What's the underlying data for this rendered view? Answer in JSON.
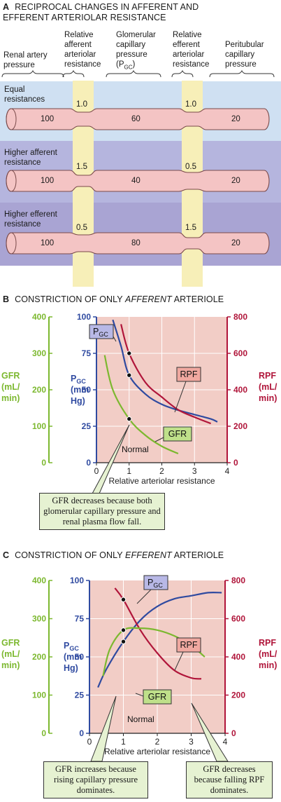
{
  "panel_a": {
    "letter": "A",
    "title_line1": "RECIPROCAL CHANGES IN AFFERENT AND",
    "title_line2": "EFFERENT ARTERIOLAR RESISTANCE",
    "col_heads": {
      "renal_artery": [
        "Renal artery",
        "pressure"
      ],
      "afferent": [
        "Relative",
        "afferent",
        "arteriolar",
        "resistance"
      ],
      "glomerular": [
        "Glomerular",
        "capillary",
        "pressure",
        "(P",
        "GC",
        ")"
      ],
      "efferent": [
        "Relative",
        "efferent",
        "arteriolar",
        "resistance"
      ],
      "peritubular": [
        "Peritubular",
        "capillary",
        "pressure"
      ]
    },
    "rows": [
      {
        "label": [
          "Equal",
          "resistances"
        ],
        "afferent": "1.0",
        "efferent": "1.0",
        "renal": "100",
        "pgc": "60",
        "peri": "20"
      },
      {
        "label": [
          "Higher afferent",
          "resistance"
        ],
        "afferent": "1.5",
        "efferent": "0.5",
        "renal": "100",
        "pgc": "40",
        "peri": "20"
      },
      {
        "label": [
          "Higher efferent",
          "resistance"
        ],
        "afferent": "0.5",
        "efferent": "1.5",
        "renal": "100",
        "pgc": "80",
        "peri": "20"
      }
    ],
    "colors": {
      "row1": "#cfe0f2",
      "row2": "#b5b5de",
      "row3": "#a9a4d3",
      "column": "#f7efb8",
      "vessel": "#f4c4c4",
      "vessel_stroke": "#7a4a4a"
    }
  },
  "panel_b": {
    "letter": "B",
    "title_pre": "CONSTRICTION OF ONLY ",
    "title_em": "AFFERENT",
    "title_post": " ARTERIOLE",
    "callout": "GFR decreases because both glomerular capillary pressure and renal plasma flow fall.",
    "normal_label": "Normal"
  },
  "panel_c": {
    "letter": "C",
    "title_pre": "CONSTRICTION OF ONLY ",
    "title_em": "EFFERENT",
    "title_post": " ARTERIOLE",
    "callout_left": "GFR increases because rising capillary pressure dominates.",
    "callout_right": "GFR decreases because falling RPF dominates.",
    "normal_label": "Normal"
  },
  "axes": {
    "gfr_label": [
      "GFR",
      "(mL/",
      "min)"
    ],
    "pgc_label": [
      "P",
      "GC",
      "(mm",
      "Hg)"
    ],
    "rpf_label": [
      "RPF",
      "(mL/",
      "min)"
    ],
    "x_label": "Relative arteriolar resistance",
    "gfr_ticks": [
      "400",
      "300",
      "200",
      "100",
      "0"
    ],
    "pgc_ticks": [
      "100",
      "75",
      "50",
      "25",
      "0"
    ],
    "rpf_ticks": [
      "800",
      "600",
      "400",
      "200",
      "0"
    ],
    "x_ticks": [
      "0",
      "1",
      "2",
      "3",
      "4"
    ],
    "series_tags": {
      "pgc": [
        "P",
        "GC"
      ],
      "rpf": "RPF",
      "gfr": "GFR"
    },
    "colors": {
      "gfr": "#7cb82f",
      "pgc": "#2f4aa0",
      "rpf": "#b0153a",
      "plot_bg": "#f2cdc6",
      "pgc_tag": "#b8b8e6",
      "rpf_tag": "#f0a8a0",
      "gfr_tag": "#bfe08a"
    }
  },
  "chart_data": [
    {
      "type": "line",
      "title": "CONSTRICTION OF ONLY AFFERENT ARTERIOLE",
      "xlabel": "Relative arteriolar resistance",
      "xlim": [
        0,
        4
      ],
      "y_axes": {
        "GFR (mL/min)": [
          0,
          400
        ],
        "PGC (mm Hg)": [
          0,
          100
        ],
        "RPF (mL/min)": [
          0,
          800
        ]
      },
      "series": [
        {
          "name": "PGC",
          "axis": "PGC (mm Hg)",
          "x": [
            0.5,
            0.75,
            1.0,
            1.5,
            2.0,
            2.5,
            3.0,
            3.5,
            3.7
          ],
          "y": [
            98,
            80,
            60,
            47,
            40,
            36,
            33,
            30,
            28
          ]
        },
        {
          "name": "RPF",
          "axis": "RPF (mL/min)",
          "x": [
            0.75,
            1.0,
            1.5,
            2.0,
            2.5,
            3.0,
            3.5
          ],
          "y": [
            760,
            600,
            440,
            360,
            290,
            250,
            215
          ]
        },
        {
          "name": "GFR",
          "axis": "GFR (mL/min)",
          "x": [
            0.25,
            0.5,
            1.0,
            1.5,
            2.0,
            2.5
          ],
          "y": [
            295,
            200,
            120,
            75,
            45,
            25
          ]
        }
      ],
      "annotations": [
        "Normal"
      ]
    },
    {
      "type": "line",
      "title": "CONSTRICTION OF ONLY EFFERENT ARTERIOLE",
      "xlabel": "Relative arteriolar resistance",
      "xlim": [
        0,
        4
      ],
      "y_axes": {
        "GFR (mL/min)": [
          0,
          400
        ],
        "PGC (mm Hg)": [
          0,
          100
        ],
        "RPF (mL/min)": [
          0,
          800
        ]
      },
      "series": [
        {
          "name": "PGC",
          "axis": "PGC (mm Hg)",
          "x": [
            0.25,
            0.5,
            1.0,
            1.5,
            2.0,
            2.5,
            3.0,
            3.5,
            3.9
          ],
          "y": [
            30,
            42,
            60,
            74,
            83,
            88,
            90,
            92,
            92
          ]
        },
        {
          "name": "RPF",
          "axis": "RPF (mL/min)",
          "x": [
            0.75,
            1.0,
            1.5,
            2.0,
            2.5,
            3.0,
            3.3
          ],
          "y": [
            760,
            700,
            540,
            420,
            330,
            290,
            285
          ]
        },
        {
          "name": "GFR",
          "axis": "GFR (mL/min)",
          "x": [
            0.4,
            0.6,
            1.0,
            1.5,
            2.0,
            2.5,
            3.0,
            3.4
          ],
          "y": [
            150,
            220,
            270,
            275,
            270,
            255,
            230,
            200
          ]
        }
      ],
      "annotations": [
        "Normal"
      ]
    }
  ]
}
